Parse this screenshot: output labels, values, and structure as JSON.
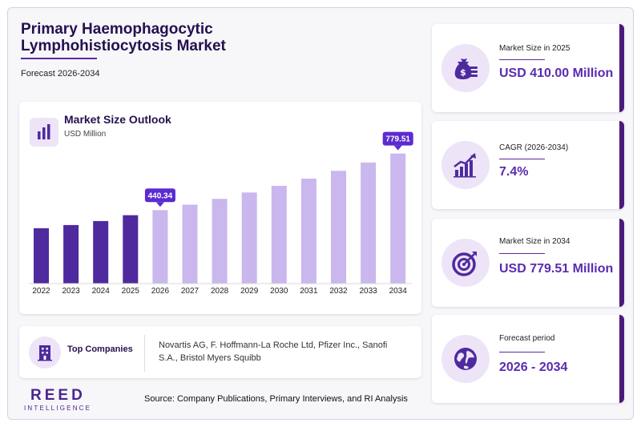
{
  "header": {
    "title": "Primary Haemophagocytic Lymphohistiocytosis Market",
    "subtitle": "Forecast 2026-2034"
  },
  "chart_card": {
    "title": "Market Size Outlook",
    "unit": "USD Million"
  },
  "chart_data": {
    "type": "bar",
    "categories": [
      "2022",
      "2023",
      "2024",
      "2025",
      "2026",
      "2027",
      "2028",
      "2029",
      "2030",
      "2031",
      "2032",
      "2033",
      "2034"
    ],
    "values": [
      332,
      351,
      375,
      410,
      440.34,
      473,
      508,
      546,
      586,
      629,
      676,
      726,
      779.51
    ],
    "historical_until": "2025",
    "historical_color": "#4f2a9e",
    "forecast_color": "#c9b7ee",
    "callouts": [
      {
        "category": "2026",
        "label": "440.34"
      },
      {
        "category": "2034",
        "label": "779.51"
      }
    ],
    "callout_color": "#5b2bd0",
    "ylim": [
      0,
      850
    ],
    "grid": false
  },
  "companies": {
    "label": "Top Companies",
    "text": "Novartis AG, F. Hoffmann-La Roche Ltd, Pfizer Inc., Sanofi S.A., Bristol Myers Squibb"
  },
  "brand": {
    "name": "REED",
    "tagline": "INTELLIGENCE"
  },
  "source": "Source: Company Publications, Primary Interviews, and RI Analysis",
  "stats": [
    {
      "label": "Market Size in 2025",
      "value": "USD 410.00 Million",
      "icon": "money-bag-icon"
    },
    {
      "label": "CAGR (2026-2034)",
      "value": "7.4%",
      "icon": "growth-chart-icon"
    },
    {
      "label": "Market Size in 2034",
      "value": "USD 779.51 Million",
      "icon": "target-icon"
    },
    {
      "label": "Forecast period",
      "value": "2026 - 2034",
      "icon": "globe-icon"
    }
  ]
}
